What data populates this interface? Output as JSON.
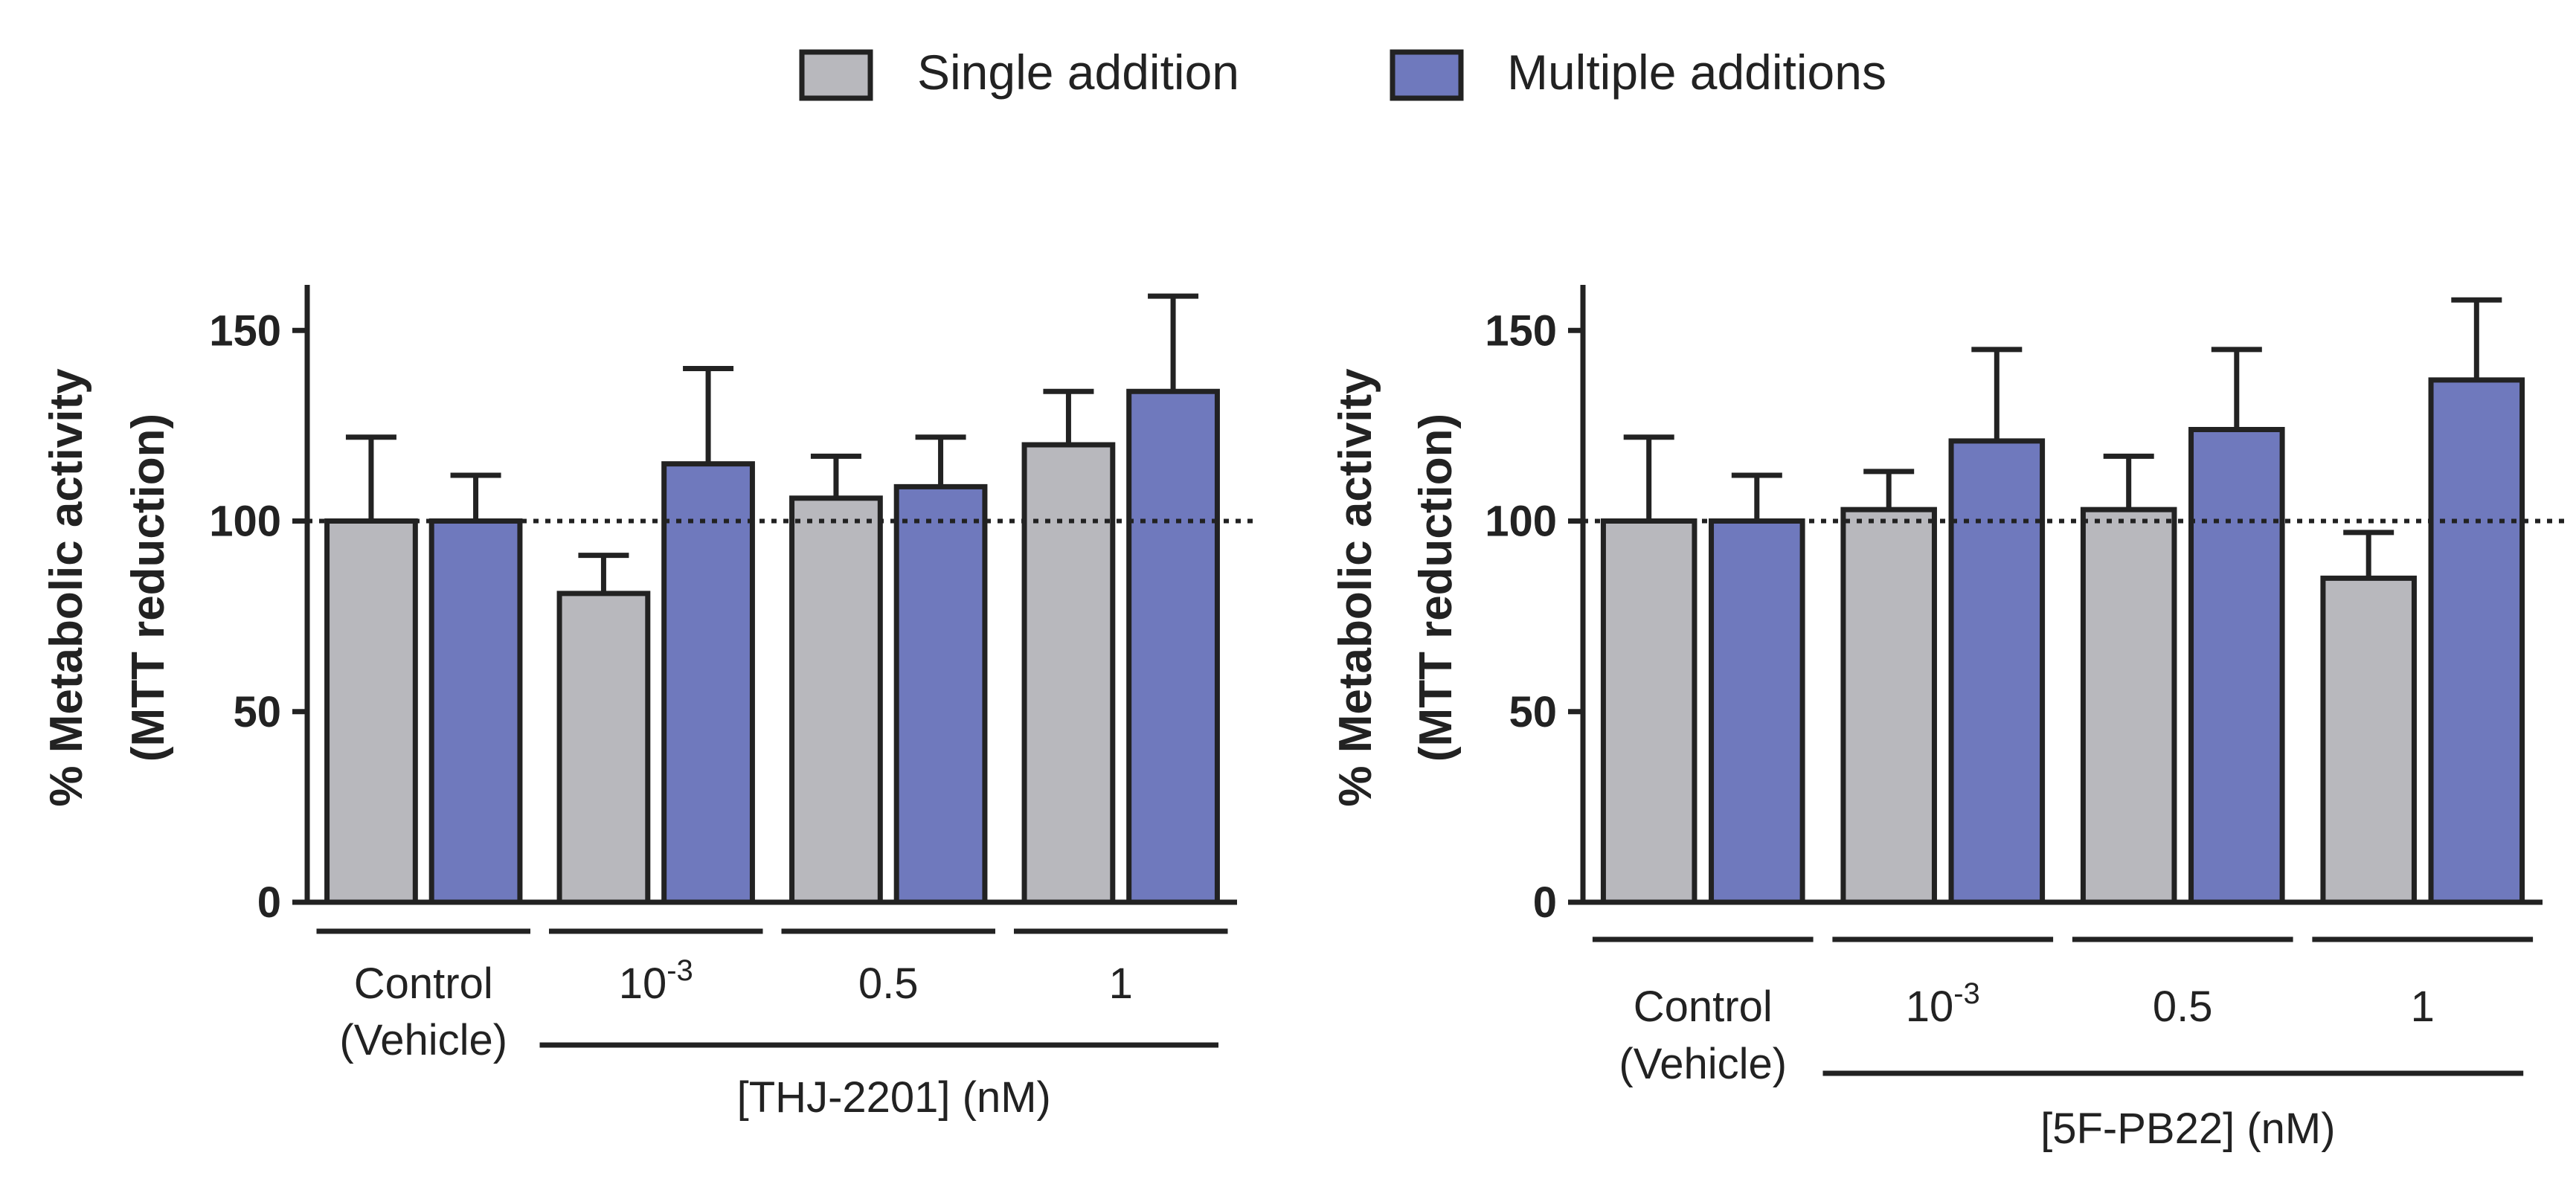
{
  "legend": {
    "single_label": "Single addition",
    "multiple_label": "Multiple additions"
  },
  "colors": {
    "single": "#b8b8bd",
    "multiple": "#6f79bd",
    "stroke": "#222222"
  },
  "chart_data": [
    {
      "type": "bar",
      "ylabel_line1": "% Metabolic activity",
      "ylabel_line2": "(MTT reduction)",
      "ylim": [
        0,
        160
      ],
      "yticks": [
        "0",
        "50",
        "100",
        "150"
      ],
      "reference_line": 100,
      "control_label_line1": "Control",
      "control_label_line2": "(Vehicle)",
      "concentrations": [
        {
          "base": "10",
          "exp": "-3"
        },
        {
          "base": "0.5",
          "exp": ""
        },
        {
          "base": "1",
          "exp": ""
        }
      ],
      "xlabel": "[THJ-2201] (nM)",
      "series": [
        {
          "name": "Single addition",
          "values": [
            100,
            81,
            106,
            120
          ],
          "errors": [
            22,
            10,
            11,
            14
          ]
        },
        {
          "name": "Multiple additions",
          "values": [
            100,
            115,
            109,
            134
          ],
          "errors": [
            12,
            25,
            13,
            25
          ]
        }
      ]
    },
    {
      "type": "bar",
      "ylabel_line1": "% Metabolic activity",
      "ylabel_line2": "(MTT reduction)",
      "ylim": [
        0,
        160
      ],
      "yticks": [
        "0",
        "50",
        "100",
        "150"
      ],
      "reference_line": 100,
      "control_label_line1": "Control",
      "control_label_line2": "(Vehicle)",
      "concentrations": [
        {
          "base": "10",
          "exp": "-3"
        },
        {
          "base": "0.5",
          "exp": ""
        },
        {
          "base": "1",
          "exp": ""
        }
      ],
      "xlabel": "[5F-PB22] (nM)",
      "series": [
        {
          "name": "Single addition",
          "values": [
            100,
            103,
            103,
            85
          ],
          "errors": [
            22,
            10,
            14,
            12
          ]
        },
        {
          "name": "Multiple additions",
          "values": [
            100,
            121,
            124,
            137
          ],
          "errors": [
            12,
            24,
            21,
            21
          ]
        }
      ]
    }
  ]
}
